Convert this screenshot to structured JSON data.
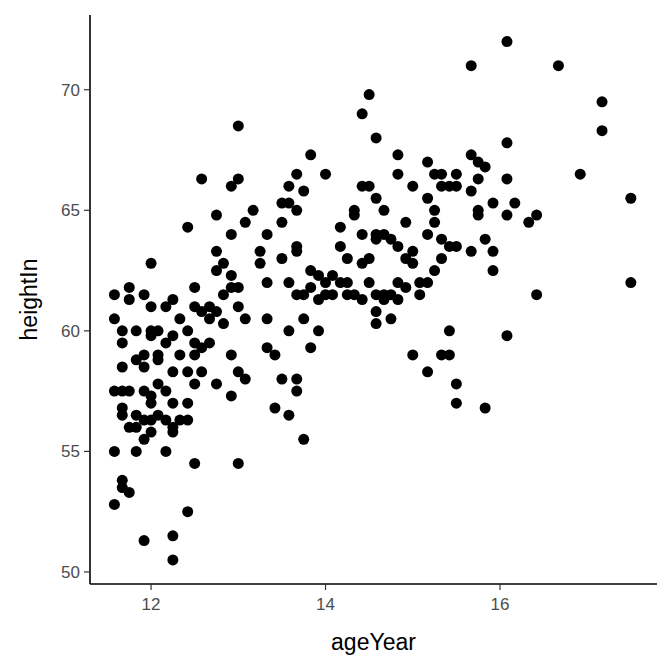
{
  "chart_data": {
    "type": "scatter",
    "x_label": "ageYear",
    "y_label": "heightIn",
    "color": "#000000",
    "grid": false,
    "marker": "circle",
    "xlim": [
      11.3,
      17.8
    ],
    "ylim": [
      49.5,
      73.1
    ],
    "xticks": [
      12,
      14,
      16
    ],
    "yticks": [
      50,
      55,
      60,
      65,
      70
    ],
    "x": [
      11.58,
      11.58,
      11.58,
      11.58,
      11.58,
      11.67,
      11.67,
      11.67,
      11.67,
      11.67,
      11.67,
      11.67,
      11.67,
      11.75,
      11.75,
      11.75,
      11.75,
      11.75,
      11.83,
      11.83,
      11.83,
      11.83,
      11.83,
      11.92,
      11.92,
      11.92,
      11.92,
      11.92,
      11.92,
      11.92,
      12.0,
      12.0,
      12.0,
      12.0,
      12.0,
      12.0,
      12.0,
      12.0,
      12.08,
      12.08,
      12.08,
      12.08,
      12.08,
      12.17,
      12.17,
      12.17,
      12.17,
      12.17,
      12.25,
      12.25,
      12.25,
      12.25,
      12.25,
      12.25,
      12.25,
      12.25,
      12.33,
      12.33,
      12.33,
      12.42,
      12.42,
      12.42,
      12.42,
      12.42,
      12.42,
      12.5,
      12.5,
      12.5,
      12.5,
      12.5,
      12.5,
      12.58,
      12.58,
      12.58,
      12.58,
      12.67,
      12.67,
      12.67,
      12.75,
      12.75,
      12.75,
      12.75,
      12.75,
      12.83,
      12.83,
      12.83,
      12.92,
      12.92,
      12.92,
      12.92,
      12.92,
      12.92,
      13.0,
      13.0,
      13.0,
      13.0,
      13.0,
      13.0,
      13.08,
      13.08,
      13.08,
      13.17,
      13.25,
      13.25,
      13.33,
      13.33,
      13.33,
      13.33,
      13.42,
      13.42,
      13.5,
      13.5,
      13.5,
      13.5,
      13.58,
      13.58,
      13.58,
      13.58,
      13.58,
      13.67,
      13.67,
      13.67,
      13.67,
      13.67,
      13.67,
      13.67,
      13.75,
      13.75,
      13.75,
      13.75,
      13.83,
      13.83,
      13.83,
      13.83,
      13.92,
      13.92,
      13.92,
      14.0,
      14.0,
      14.0,
      14.08,
      14.08,
      14.17,
      14.17,
      14.17,
      14.25,
      14.25,
      14.25,
      14.33,
      14.33,
      14.33,
      14.42,
      14.42,
      14.42,
      14.42,
      14.42,
      14.5,
      14.5,
      14.5,
      14.5,
      14.58,
      14.58,
      14.58,
      14.58,
      14.58,
      14.58,
      14.58,
      14.67,
      14.67,
      14.67,
      14.67,
      14.75,
      14.75,
      14.75,
      14.83,
      14.83,
      14.83,
      14.83,
      14.83,
      14.92,
      14.92,
      14.92,
      15.0,
      15.0,
      15.0,
      15.0,
      15.08,
      15.08,
      15.17,
      15.17,
      15.17,
      15.17,
      15.17,
      15.25,
      15.25,
      15.25,
      15.25,
      15.33,
      15.33,
      15.33,
      15.33,
      15.33,
      15.42,
      15.42,
      15.42,
      15.42,
      15.5,
      15.5,
      15.5,
      15.5,
      15.5,
      15.67,
      15.67,
      15.67,
      15.67,
      15.75,
      15.75,
      15.75,
      15.75,
      15.83,
      15.83,
      15.83,
      15.92,
      15.92,
      15.92,
      16.08,
      16.08,
      16.08,
      16.08,
      16.08,
      16.17,
      16.33,
      16.42,
      16.42,
      16.67,
      16.92,
      17.17,
      17.17,
      17.5,
      17.5
    ],
    "values": [
      61.5,
      60.5,
      57.5,
      55.0,
      52.8,
      60.0,
      59.5,
      58.5,
      57.5,
      56.5,
      56.8,
      53.8,
      53.5,
      61.8,
      61.3,
      57.5,
      56.0,
      53.3,
      60.0,
      58.8,
      56.5,
      56.0,
      55.0,
      61.5,
      59.0,
      58.5,
      57.5,
      56.3,
      55.5,
      51.3,
      62.8,
      61.0,
      60.0,
      59.8,
      57.3,
      57.0,
      56.3,
      55.8,
      59.0,
      58.8,
      57.8,
      56.5,
      60.0,
      61.0,
      59.5,
      57.5,
      55.0,
      56.3,
      61.3,
      59.8,
      58.3,
      57.0,
      56.0,
      55.8,
      51.5,
      50.5,
      60.5,
      59.0,
      56.3,
      64.3,
      60.0,
      58.3,
      57.0,
      56.3,
      52.5,
      61.8,
      61.0,
      59.5,
      59.0,
      57.8,
      54.5,
      66.3,
      60.8,
      59.3,
      58.3,
      61.0,
      60.5,
      59.5,
      64.8,
      63.3,
      62.5,
      60.8,
      57.8,
      62.8,
      61.5,
      60.3,
      66.0,
      64.0,
      62.3,
      61.8,
      59.0,
      57.3,
      68.5,
      66.3,
      61.8,
      61.0,
      58.3,
      54.5,
      64.5,
      60.5,
      58.0,
      65.0,
      63.3,
      62.8,
      64.0,
      62.0,
      60.5,
      59.3,
      59.0,
      56.8,
      65.3,
      64.5,
      63.0,
      58.0,
      66.0,
      65.3,
      62.0,
      60.0,
      56.5,
      66.5,
      65.0,
      63.5,
      63.3,
      61.5,
      58.0,
      57.5,
      65.8,
      61.5,
      60.5,
      55.5,
      67.3,
      62.5,
      61.8,
      59.3,
      62.3,
      61.3,
      60.0,
      66.5,
      62.0,
      61.5,
      62.3,
      61.5,
      64.3,
      63.5,
      62.0,
      63.0,
      62.0,
      61.5,
      65.0,
      64.8,
      61.5,
      69.0,
      66.0,
      64.0,
      62.8,
      61.3,
      69.8,
      66.0,
      63.0,
      62.0,
      68.0,
      65.5,
      64.0,
      63.8,
      61.5,
      60.8,
      60.3,
      65.0,
      64.0,
      61.3,
      61.5,
      63.8,
      61.5,
      60.5,
      67.3,
      66.5,
      63.5,
      62.0,
      61.3,
      64.5,
      63.0,
      61.8,
      66.0,
      63.3,
      62.8,
      59.0,
      62.0,
      61.5,
      67.0,
      65.5,
      64.0,
      58.3,
      62.0,
      66.5,
      65.0,
      64.5,
      62.5,
      66.5,
      66.0,
      63.8,
      63.0,
      59.0,
      66.0,
      63.5,
      60.0,
      59.0,
      66.5,
      66.0,
      63.5,
      57.8,
      57.0,
      71.0,
      67.3,
      65.8,
      63.3,
      67.0,
      66.3,
      65.0,
      64.8,
      66.8,
      63.8,
      56.8,
      65.3,
      63.3,
      62.5,
      72.0,
      67.8,
      66.3,
      64.8,
      59.8,
      65.3,
      64.5,
      64.8,
      61.5,
      71.0,
      66.5,
      69.5,
      68.3,
      65.5,
      62.0
    ]
  }
}
